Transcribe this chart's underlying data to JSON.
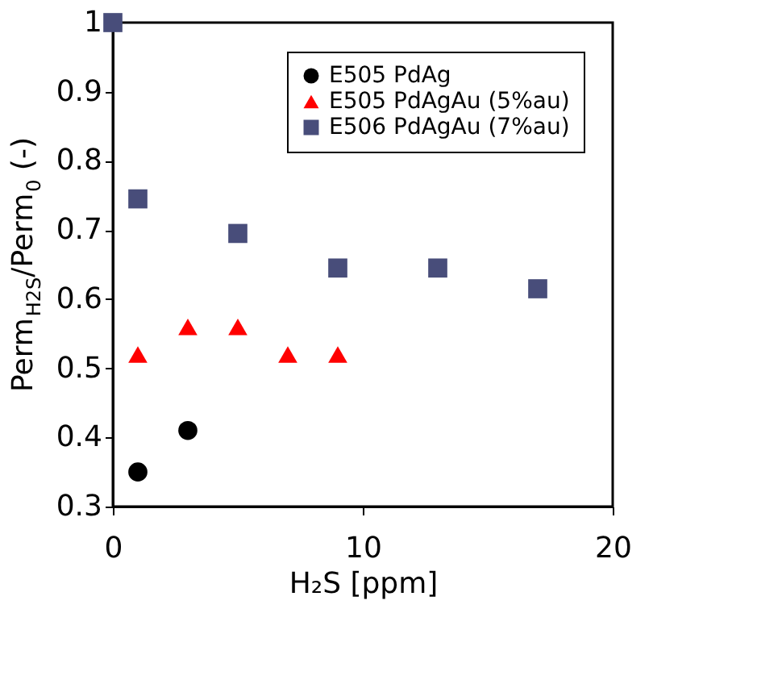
{
  "chart_data": {
    "type": "scatter",
    "xlabel": "H₂S [ppm]",
    "ylabel": "Perm$_{H2S}$/Perm$_{0}$ (-)",
    "xlim": [
      0,
      20
    ],
    "xticks": [
      0,
      10,
      20
    ],
    "ylim": [
      0.3,
      1
    ],
    "yticks": [
      0.3,
      0.4,
      0.5,
      0.6,
      0.7,
      0.8,
      0.9,
      {
        "value": 1,
        "label": "1"
      }
    ],
    "grid": false,
    "legend": "top right",
    "series": [
      {
        "name": "E505 PdAg",
        "color": "#000000",
        "marker": "circle",
        "x": [
          1,
          3
        ],
        "values": [
          0.35,
          0.41
        ]
      },
      {
        "name": "E505 PdAgAu (5%au)",
        "color": "#ff0000",
        "marker": "triangle",
        "x": [
          1,
          3,
          5,
          7,
          9
        ],
        "values": [
          0.52,
          0.56,
          0.56,
          0.52,
          0.52
        ]
      },
      {
        "name": "E506 PdAgAu (7%au)",
        "color": "#484d7a",
        "marker": "square",
        "x": [
          0,
          1,
          5,
          9,
          13,
          17
        ],
        "values": [
          1.0,
          0.745,
          0.695,
          0.645,
          0.645,
          0.615
        ]
      }
    ]
  }
}
